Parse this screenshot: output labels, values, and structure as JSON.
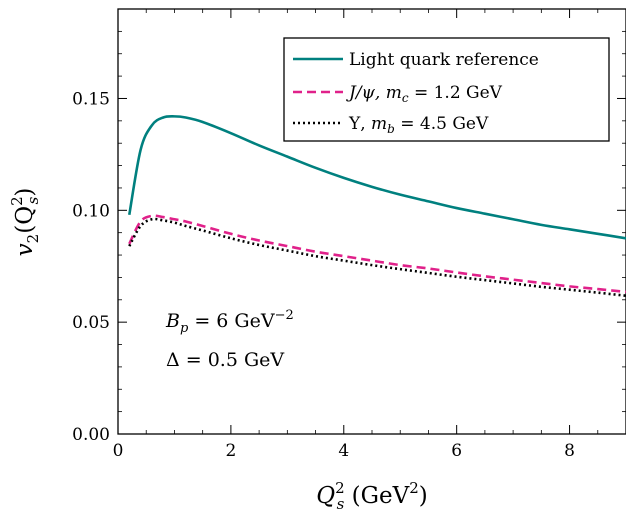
{
  "chart_data": {
    "type": "line",
    "title": "",
    "xlabel_main": "Q",
    "xlabel_sup": "2",
    "xlabel_sub": "s",
    "xlabel_rest": " (GeV",
    "xlabel_rest_sup": "2",
    "xlabel_close": ")",
    "ylabel_main": "v",
    "ylabel_sub": "2",
    "ylabel_open": "(Q",
    "ylabel_sup": "2",
    "ylabel_sub2": "s",
    "ylabel_close": ")",
    "xlim": [
      0,
      9
    ],
    "ylim": [
      0,
      0.19
    ],
    "xticks": [
      0,
      2,
      4,
      6,
      8
    ],
    "xtick_labels": [
      "0",
      "2",
      "4",
      "6",
      "8"
    ],
    "yticks": [
      0,
      0.05,
      0.1,
      0.15
    ],
    "ytick_labels": [
      "0.00",
      "0.05",
      "0.10",
      "0.15"
    ],
    "grid": false,
    "legend_position": "top-right",
    "series": [
      {
        "name": "Light quark reference",
        "color": "#00807f",
        "style": "solid",
        "x": [
          0.2,
          0.4,
          0.6,
          0.8,
          1.0,
          1.2,
          1.5,
          2.0,
          2.5,
          3.0,
          3.5,
          4.0,
          4.5,
          5.0,
          5.5,
          6.0,
          6.5,
          7.0,
          7.5,
          8.0,
          8.5,
          9.0
        ],
        "y": [
          0.098,
          0.127,
          0.138,
          0.1415,
          0.142,
          0.1415,
          0.1395,
          0.1345,
          0.129,
          0.124,
          0.119,
          0.1145,
          0.1105,
          0.107,
          0.104,
          0.101,
          0.0985,
          0.096,
          0.0935,
          0.0915,
          0.0895,
          0.0875
        ]
      },
      {
        "name": "J/ψ, m_c = 1.2 GeV",
        "color": "#e0218a",
        "style": "dashed",
        "x": [
          0.2,
          0.4,
          0.6,
          0.8,
          1.0,
          1.2,
          1.5,
          2.0,
          2.5,
          3.0,
          3.5,
          4.0,
          4.5,
          5.0,
          5.5,
          6.0,
          6.5,
          7.0,
          7.5,
          8.0,
          8.5,
          9.0
        ],
        "y": [
          0.085,
          0.095,
          0.0975,
          0.097,
          0.096,
          0.095,
          0.093,
          0.0895,
          0.0865,
          0.084,
          0.0815,
          0.0795,
          0.0775,
          0.0755,
          0.074,
          0.0722,
          0.0705,
          0.069,
          0.0675,
          0.066,
          0.0648,
          0.0635
        ]
      },
      {
        "name": "Υ, m_b = 4.5 GeV",
        "color": "#000000",
        "style": "dotted",
        "x": [
          0.2,
          0.4,
          0.6,
          0.8,
          1.0,
          1.2,
          1.5,
          2.0,
          2.5,
          3.0,
          3.5,
          4.0,
          4.5,
          5.0,
          5.5,
          6.0,
          6.5,
          7.0,
          7.5,
          8.0,
          8.5,
          9.0
        ],
        "y": [
          0.084,
          0.093,
          0.096,
          0.0955,
          0.0945,
          0.093,
          0.091,
          0.0875,
          0.0845,
          0.082,
          0.0795,
          0.0775,
          0.0755,
          0.0737,
          0.072,
          0.0703,
          0.0688,
          0.0673,
          0.0658,
          0.0645,
          0.0632,
          0.0618
        ]
      }
    ],
    "legend": {
      "entry0_text": "Light quark reference",
      "entry1_a": "J/ψ, ",
      "entry1_m": "m",
      "entry1_sub": "c",
      "entry1_b": " = 1.2 GeV",
      "entry2_a": "Υ, ",
      "entry2_m": "m",
      "entry2_sub": "b",
      "entry2_b": " = 4.5 GeV"
    },
    "annotations": {
      "bp_main": "B",
      "bp_sub": "p",
      "bp_eq": " = 6 GeV",
      "bp_sup": "−2",
      "delta": "Δ = 0.5 GeV"
    }
  }
}
